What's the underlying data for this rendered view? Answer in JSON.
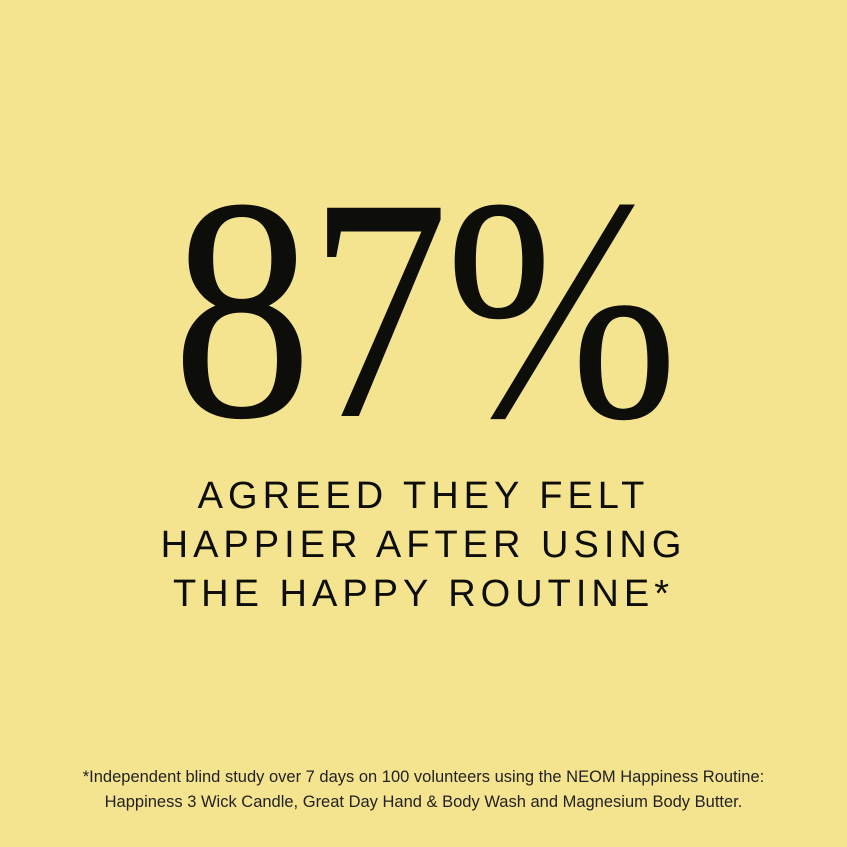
{
  "colors": {
    "background": "#f5e48f",
    "text": "#0d0d0a"
  },
  "headline": {
    "value": "87%"
  },
  "subtitle": {
    "lines": [
      "AGREED THEY FELT",
      "HAPPIER AFTER USING",
      "THE HAPPY ROUTINE*"
    ]
  },
  "footnote": {
    "lines": [
      "*Independent blind study over 7 days on 100 volunteers using the NEOM Happiness Routine:",
      "Happiness 3 Wick Candle, Great Day Hand & Body Wash and Magnesium Body Butter."
    ]
  }
}
